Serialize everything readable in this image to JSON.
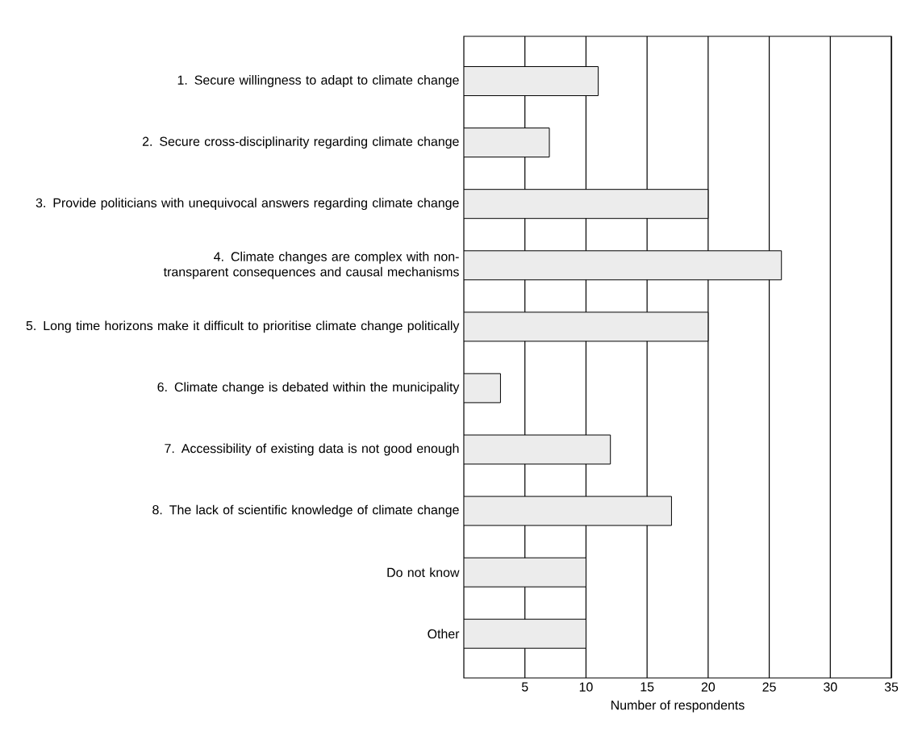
{
  "chart_data": {
    "type": "bar",
    "orientation": "horizontal",
    "xlabel": "Number of respondents",
    "categories": [
      "1. Secure willingness to adapt to climate change",
      "2. Secure cross-disciplinarity regarding climate change",
      "3. Provide politicians with unequivocal answers regarding climate change",
      "4. Climate changes are complex with non-transparent consequences and causal mechanisms",
      "5. Long time horizons make it difficult to prioritise climate change politically",
      "6. Climate change is debated within the municipality",
      "7. Accessibility of existing data is not good enough",
      "8. The lack of scientific knowledge of climate change",
      "Do not know",
      "Other"
    ],
    "values": [
      11,
      7,
      20,
      26,
      20,
      3,
      12,
      17,
      10,
      10
    ],
    "color": "#ececec",
    "xlim": [
      0,
      35
    ],
    "xticks": [
      5,
      10,
      15,
      20,
      25,
      30,
      35
    ],
    "grid": "x"
  }
}
